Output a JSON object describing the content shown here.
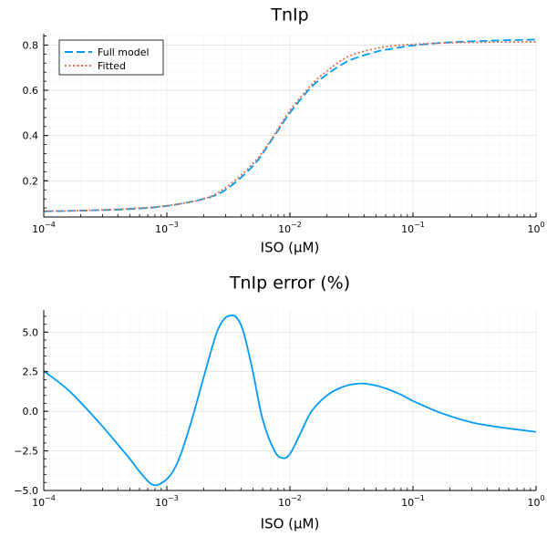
{
  "chart_data": [
    {
      "type": "line",
      "title": "TnIp",
      "xlabel": "ISO (μM)",
      "ylabel": "",
      "xscale": "log",
      "xlim": [
        0.0001,
        1
      ],
      "ylim": [
        0.04,
        0.85
      ],
      "xticks": [
        {
          "value": 0.0001,
          "base": "10",
          "exp": "−4"
        },
        {
          "value": 0.001,
          "base": "10",
          "exp": "−3"
        },
        {
          "value": 0.01,
          "base": "10",
          "exp": "−2"
        },
        {
          "value": 0.1,
          "base": "10",
          "exp": "−1"
        },
        {
          "value": 1,
          "base": "10",
          "exp": "0"
        }
      ],
      "yticks": [
        0.2,
        0.4,
        0.6,
        0.8
      ],
      "ytick_labels": [
        "0.2",
        "0.4",
        "0.6",
        "0.8"
      ],
      "grid": true,
      "legend": "top-left",
      "series": [
        {
          "name": "Full model",
          "color": "#009AFA",
          "style": "dashed",
          "x": [
            0.0001,
            0.0002,
            0.0005,
            0.001,
            0.002,
            0.003,
            0.005,
            0.007,
            0.01,
            0.015,
            0.02,
            0.03,
            0.05,
            0.07,
            0.1,
            0.2,
            0.5,
            1
          ],
          "y": [
            0.065,
            0.068,
            0.075,
            0.089,
            0.12,
            0.16,
            0.265,
            0.375,
            0.5,
            0.615,
            0.67,
            0.73,
            0.77,
            0.785,
            0.798,
            0.812,
            0.82,
            0.824
          ]
        },
        {
          "name": "Fitted",
          "color": "#E36F47",
          "style": "dotted",
          "x": [
            0.0001,
            0.0002,
            0.0005,
            0.001,
            0.002,
            0.003,
            0.005,
            0.007,
            0.01,
            0.015,
            0.02,
            0.03,
            0.05,
            0.07,
            0.1,
            0.2,
            0.5,
            1
          ],
          "y": [
            0.066,
            0.068,
            0.077,
            0.09,
            0.12,
            0.17,
            0.275,
            0.38,
            0.51,
            0.625,
            0.685,
            0.75,
            0.785,
            0.797,
            0.803,
            0.81,
            0.813,
            0.814
          ]
        }
      ]
    },
    {
      "type": "line",
      "title": "TnIp error (%)",
      "xlabel": "ISO (μM)",
      "ylabel": "",
      "xscale": "log",
      "xlim": [
        0.0001,
        1
      ],
      "ylim": [
        -5.0,
        6.4
      ],
      "xticks": [
        {
          "value": 0.0001,
          "base": "10",
          "exp": "−4"
        },
        {
          "value": 0.001,
          "base": "10",
          "exp": "−3"
        },
        {
          "value": 0.01,
          "base": "10",
          "exp": "−2"
        },
        {
          "value": 0.1,
          "base": "10",
          "exp": "−1"
        },
        {
          "value": 1,
          "base": "10",
          "exp": "0"
        }
      ],
      "yticks": [
        -5.0,
        -2.5,
        0.0,
        2.5,
        5.0
      ],
      "ytick_labels": [
        "−5.0",
        "−2.5",
        "0.0",
        "2.5",
        "5.0"
      ],
      "grid": true,
      "legend": "none",
      "series": [
        {
          "color": "#009AFA",
          "style": "solid",
          "x": [
            0.0001,
            0.00015,
            0.0002,
            0.0003,
            0.0004,
            0.0005,
            0.0006,
            0.00075,
            0.0009,
            0.0011,
            0.0013,
            0.0016,
            0.002,
            0.0025,
            0.0029,
            0.0033,
            0.0037,
            0.0042,
            0.005,
            0.006,
            0.0075,
            0.0087,
            0.01,
            0.012,
            0.015,
            0.02,
            0.027,
            0.036,
            0.045,
            0.06,
            0.08,
            0.1,
            0.15,
            0.2,
            0.3,
            0.5,
            0.7,
            1
          ],
          "y": [
            2.55,
            1.5,
            0.55,
            -0.95,
            -2.1,
            -3.0,
            -3.8,
            -4.6,
            -4.55,
            -3.9,
            -2.7,
            -0.5,
            2.2,
            4.8,
            5.8,
            6.05,
            5.9,
            5.0,
            2.5,
            -0.5,
            -2.5,
            -2.95,
            -2.7,
            -1.5,
            0.0,
            1.0,
            1.55,
            1.75,
            1.7,
            1.45,
            1.05,
            0.65,
            0.05,
            -0.3,
            -0.7,
            -1.0,
            -1.15,
            -1.3
          ]
        }
      ]
    }
  ]
}
